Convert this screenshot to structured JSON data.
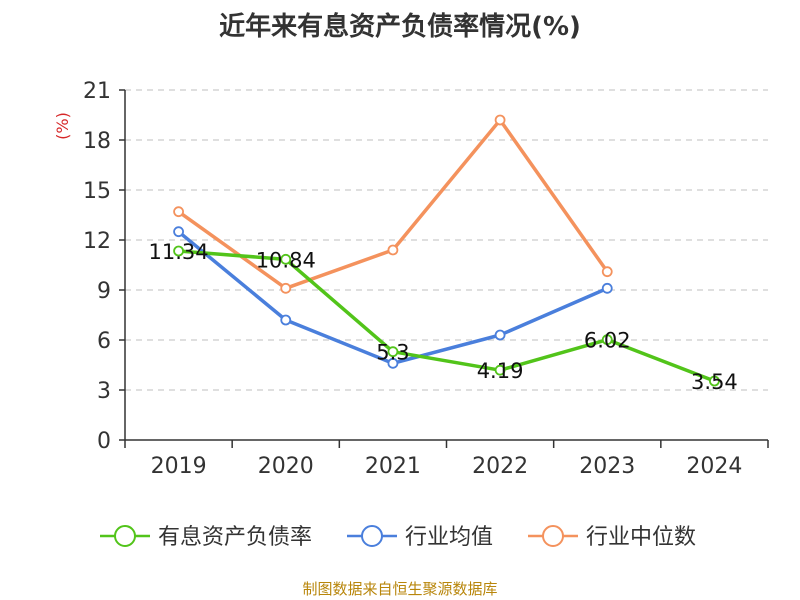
{
  "title": "近年来有息资产负债率情况(%)",
  "source": "制图数据来自恒生聚源数据库",
  "unit": "(%)",
  "colors": {
    "unit": "#d62728",
    "axis": "#333333",
    "grid": "#cccccc"
  },
  "chart_data": {
    "type": "line",
    "title": "近年来有息资产负债率情况(%)",
    "ylabel": "(%)",
    "x": [
      "2019",
      "2020",
      "2021",
      "2022",
      "2023",
      "2024"
    ],
    "ylim": [
      0,
      21
    ],
    "yticks": [
      0,
      3,
      6,
      9,
      12,
      15,
      18,
      21
    ],
    "grid": true,
    "legend_position": "bottom",
    "series": [
      {
        "name": "有息资产负债率",
        "color": "#52c41a",
        "values": [
          11.34,
          10.84,
          5.3,
          4.19,
          6.02,
          3.54
        ],
        "labels": [
          "11.34",
          "10.84",
          "5.3",
          "4.19",
          "6.02",
          "3.54"
        ]
      },
      {
        "name": "行业均值",
        "color": "#4a7fdc",
        "values": [
          12.5,
          7.2,
          4.6,
          6.3,
          9.1,
          null
        ]
      },
      {
        "name": "行业中位数",
        "color": "#f4925d",
        "values": [
          13.7,
          9.1,
          11.4,
          19.2,
          10.1,
          null
        ]
      }
    ]
  }
}
